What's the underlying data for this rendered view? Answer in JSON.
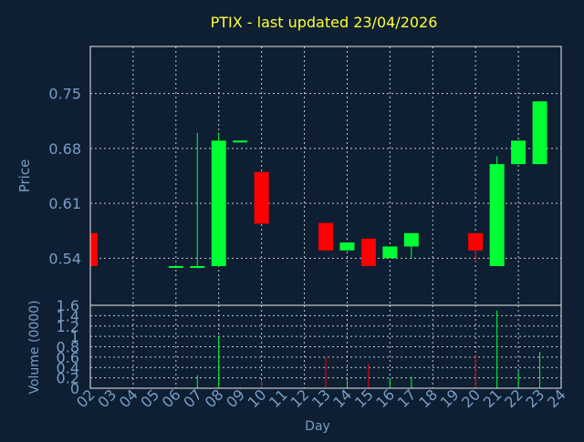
{
  "colors": {
    "background": "#0e1f33",
    "title": "#ffff33",
    "axis_text": "#7a9cc4",
    "frame": "#e8e8e8",
    "grid": "#c8c8c8",
    "up": "#00ff33",
    "down": "#ff0000"
  },
  "chart_data": [
    {
      "type": "candlestick",
      "title": "PTIX - last updated 23/04/2026",
      "ylabel": "Price",
      "ylim": [
        0.48,
        0.81
      ],
      "yticks": [
        "0.54",
        "0.61",
        "0.68",
        "0.75"
      ],
      "ytick_values": [
        0.54,
        0.61,
        0.68,
        0.75
      ],
      "xlim": [
        2,
        24
      ],
      "grid": true,
      "candles": [
        {
          "day": 2,
          "open": 0.572,
          "high": 0.572,
          "low": 0.53,
          "close": 0.53
        },
        {
          "day": 6,
          "open": 0.529,
          "high": 0.529,
          "low": 0.529,
          "close": 0.53
        },
        {
          "day": 7,
          "open": 0.529,
          "high": 0.7,
          "low": 0.529,
          "close": 0.53
        },
        {
          "day": 8,
          "open": 0.53,
          "high": 0.7,
          "low": 0.53,
          "close": 0.69
        },
        {
          "day": 9,
          "open": 0.689,
          "high": 0.69,
          "low": 0.689,
          "close": 0.69
        },
        {
          "day": 10,
          "open": 0.65,
          "high": 0.65,
          "low": 0.584,
          "close": 0.584
        },
        {
          "day": 13,
          "open": 0.585,
          "high": 0.585,
          "low": 0.55,
          "close": 0.55
        },
        {
          "day": 14,
          "open": 0.55,
          "high": 0.56,
          "low": 0.55,
          "close": 0.56
        },
        {
          "day": 15,
          "open": 0.565,
          "high": 0.565,
          "low": 0.53,
          "close": 0.53
        },
        {
          "day": 16,
          "open": 0.54,
          "high": 0.555,
          "low": 0.54,
          "close": 0.555
        },
        {
          "day": 17,
          "open": 0.555,
          "high": 0.572,
          "low": 0.54,
          "close": 0.572
        },
        {
          "day": 20,
          "open": 0.572,
          "high": 0.572,
          "low": 0.535,
          "close": 0.55
        },
        {
          "day": 21,
          "open": 0.53,
          "high": 0.67,
          "low": 0.53,
          "close": 0.66
        },
        {
          "day": 22,
          "open": 0.66,
          "high": 0.69,
          "low": 0.66,
          "close": 0.69
        },
        {
          "day": 23,
          "open": 0.66,
          "high": 0.74,
          "low": 0.66,
          "close": 0.74
        }
      ]
    },
    {
      "type": "bar",
      "ylabel": "Volume (0000)",
      "xlabel": "Day",
      "ylim": [
        0,
        1.6
      ],
      "yticks": [
        "0",
        "0.2",
        "0.4",
        "0.6",
        "0.8",
        "1",
        "1.2",
        "1.4",
        "1.6"
      ],
      "ytick_values": [
        0,
        0.2,
        0.4,
        0.6,
        0.8,
        1.0,
        1.2,
        1.4,
        1.6
      ],
      "categories": [
        "02",
        "03",
        "04",
        "05",
        "06",
        "07",
        "08",
        "09",
        "10",
        "11",
        "12",
        "13",
        "14",
        "15",
        "16",
        "17",
        "18",
        "19",
        "20",
        "21",
        "22",
        "23",
        "24"
      ],
      "grid": true,
      "bars": [
        {
          "day": 6,
          "value": 0.02,
          "direction": "up"
        },
        {
          "day": 7,
          "value": 0.25,
          "direction": "up"
        },
        {
          "day": 8,
          "value": 1.0,
          "direction": "up"
        },
        {
          "day": 9,
          "value": 0.02,
          "direction": "up"
        },
        {
          "day": 10,
          "value": 0.15,
          "direction": "down"
        },
        {
          "day": 13,
          "value": 0.6,
          "direction": "down"
        },
        {
          "day": 14,
          "value": 0.15,
          "direction": "up"
        },
        {
          "day": 15,
          "value": 0.48,
          "direction": "down"
        },
        {
          "day": 16,
          "value": 0.18,
          "direction": "up"
        },
        {
          "day": 17,
          "value": 0.22,
          "direction": "up"
        },
        {
          "day": 20,
          "value": 0.65,
          "direction": "down"
        },
        {
          "day": 21,
          "value": 1.5,
          "direction": "up"
        },
        {
          "day": 22,
          "value": 0.33,
          "direction": "up"
        },
        {
          "day": 23,
          "value": 0.7,
          "direction": "up"
        }
      ]
    }
  ]
}
